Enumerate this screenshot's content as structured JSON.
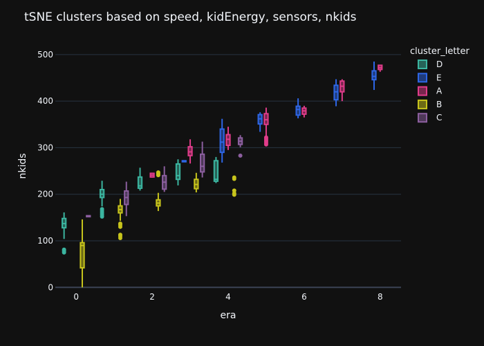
{
  "chart_data": {
    "type": "box",
    "title": "tSNE clusters based on speed, kidEnergy, sensors, nkids",
    "xlabel": "era",
    "ylabel": "nkids",
    "xlim": [
      -0.55,
      8.55
    ],
    "ylim": [
      -7,
      528
    ],
    "x_ticks": [
      0,
      2,
      4,
      6,
      8
    ],
    "y_ticks": [
      0,
      100,
      200,
      300,
      400,
      500
    ],
    "grid": true,
    "legend": {
      "title": "cluster_letter",
      "position": "right"
    },
    "series": [
      {
        "name": "D",
        "color": "#3bb5a0",
        "boxes": [
          {
            "x": 0,
            "lowerfence": 104,
            "q1": 128,
            "median": 137,
            "q3": 148,
            "upperfence": 161,
            "outliers": [
              75,
              78,
              81
            ]
          },
          {
            "x": 1,
            "lowerfence": 174,
            "q1": 193,
            "median": 200,
            "q3": 210,
            "upperfence": 229,
            "outliers": [
              152,
              156,
              160,
              164,
              168
            ]
          },
          {
            "x": 2,
            "lowerfence": 208,
            "q1": 213,
            "median": 218,
            "q3": 237,
            "upperfence": 257,
            "outliers": []
          },
          {
            "x": 3,
            "lowerfence": 219,
            "q1": 232,
            "median": 240,
            "q3": 265,
            "upperfence": 275,
            "outliers": []
          },
          {
            "x": 4,
            "lowerfence": 224,
            "q1": 228,
            "median": 232,
            "q3": 272,
            "upperfence": 280,
            "outliers": []
          }
        ]
      },
      {
        "name": "E",
        "color": "#2e66e6",
        "boxes": [
          {
            "x": 3,
            "lowerfence": 270,
            "q1": 270,
            "median": 271,
            "q3": 272,
            "upperfence": 272,
            "outliers": []
          },
          {
            "x": 4,
            "lowerfence": 268,
            "q1": 290,
            "median": 312,
            "q3": 340,
            "upperfence": 362,
            "outliers": []
          },
          {
            "x": 5,
            "lowerfence": 334,
            "q1": 351,
            "median": 362,
            "q3": 371,
            "upperfence": 376,
            "outliers": []
          },
          {
            "x": 6,
            "lowerfence": 363,
            "q1": 370,
            "median": 382,
            "q3": 389,
            "upperfence": 406,
            "outliers": []
          },
          {
            "x": 7,
            "lowerfence": 389,
            "q1": 403,
            "median": 420,
            "q3": 434,
            "upperfence": 447,
            "outliers": []
          },
          {
            "x": 8,
            "lowerfence": 424,
            "q1": 446,
            "median": 453,
            "q3": 465,
            "upperfence": 485,
            "outliers": []
          }
        ]
      },
      {
        "name": "A",
        "color": "#e03c8a",
        "boxes": [
          {
            "x": 2,
            "lowerfence": 236,
            "q1": 237,
            "median": 241,
            "q3": 245,
            "upperfence": 246,
            "outliers": []
          },
          {
            "x": 3,
            "lowerfence": 266,
            "q1": 283,
            "median": 291,
            "q3": 302,
            "upperfence": 318,
            "outliers": []
          },
          {
            "x": 4,
            "lowerfence": 295,
            "q1": 305,
            "median": 318,
            "q3": 328,
            "upperfence": 345,
            "outliers": []
          },
          {
            "x": 5,
            "lowerfence": 324,
            "q1": 350,
            "median": 360,
            "q3": 373,
            "upperfence": 386,
            "outliers": [
              307,
              310,
              313,
              316,
              319,
              322
            ]
          },
          {
            "x": 6,
            "lowerfence": 365,
            "q1": 372,
            "median": 379,
            "q3": 385,
            "upperfence": 390,
            "outliers": []
          },
          {
            "x": 7,
            "lowerfence": 400,
            "q1": 420,
            "median": 432,
            "q3": 443,
            "upperfence": 447,
            "outliers": []
          },
          {
            "x": 8,
            "lowerfence": 463,
            "q1": 468,
            "median": 472,
            "q3": 477,
            "upperfence": 478,
            "outliers": []
          }
        ]
      },
      {
        "name": "B",
        "color": "#c7c41c",
        "boxes": [
          {
            "x": 0,
            "lowerfence": 0,
            "q1": 42,
            "median": 90,
            "q3": 96,
            "upperfence": 146,
            "outliers": []
          },
          {
            "x": 1,
            "lowerfence": 143,
            "q1": 160,
            "median": 167,
            "q3": 175,
            "upperfence": 190,
            "outliers": [
              106,
              110,
              113,
              130,
              134,
              137
            ]
          },
          {
            "x": 2,
            "lowerfence": 164,
            "q1": 175,
            "median": 181,
            "q3": 188,
            "upperfence": 203,
            "outliers": [
              241,
              244,
              247
            ]
          },
          {
            "x": 3,
            "lowerfence": 204,
            "q1": 212,
            "median": 221,
            "q3": 232,
            "upperfence": 246,
            "outliers": []
          },
          {
            "x": 4,
            "lowerfence": null,
            "q1": null,
            "median": null,
            "q3": null,
            "upperfence": null,
            "outliers": [
              199,
              202,
              208,
              233,
              236
            ]
          }
        ]
      },
      {
        "name": "C",
        "color": "#8c5f9f",
        "boxes": [
          {
            "x": 0,
            "lowerfence": 153,
            "q1": 153,
            "median": 153,
            "q3": 154,
            "upperfence": 154,
            "outliers": []
          },
          {
            "x": 1,
            "lowerfence": 153,
            "q1": 178,
            "median": 193,
            "q3": 207,
            "upperfence": 227,
            "outliers": []
          },
          {
            "x": 2,
            "lowerfence": 205,
            "q1": 211,
            "median": 226,
            "q3": 240,
            "upperfence": 260,
            "outliers": []
          },
          {
            "x": 3,
            "lowerfence": 236,
            "q1": 248,
            "median": 260,
            "q3": 286,
            "upperfence": 313,
            "outliers": []
          },
          {
            "x": 4,
            "lowerfence": 301,
            "q1": 307,
            "median": 314,
            "q3": 321,
            "upperfence": 327,
            "outliers": [
              283
            ]
          }
        ]
      }
    ]
  }
}
